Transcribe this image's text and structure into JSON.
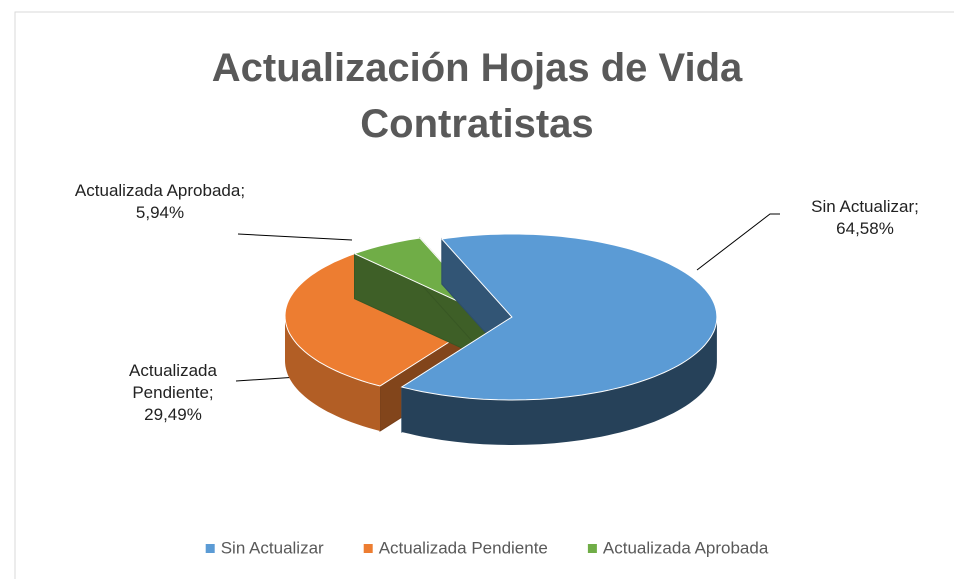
{
  "chart_data": {
    "type": "pie",
    "title": "Actualización Hojas de Vida Contratistas",
    "categories": [
      "Sin Actualizar",
      "Actualizada Pendiente",
      "Actualizada Aprobada"
    ],
    "values": [
      64.58,
      29.49,
      5.94
    ],
    "value_labels": [
      "64,58%",
      "29,49%",
      "5,94%"
    ],
    "label_separator": "; ",
    "colors": [
      "#5b9bd5",
      "#ed7d31",
      "#70ad47"
    ],
    "legend": "bottom"
  }
}
